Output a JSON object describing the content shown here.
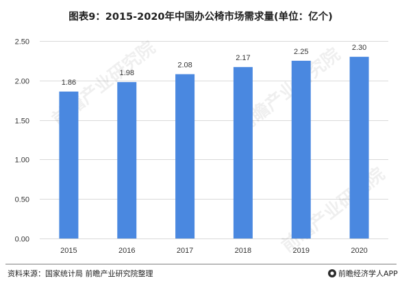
{
  "chart_data": {
    "type": "bar",
    "title": "图表9：2015-2020年中国办公椅市场需求量(单位：亿个)",
    "categories": [
      "2015",
      "2016",
      "2017",
      "2018",
      "2019",
      "2020"
    ],
    "values": [
      1.86,
      1.98,
      2.08,
      2.17,
      2.25,
      2.3
    ],
    "value_labels": [
      "1.86",
      "1.98",
      "2.08",
      "2.17",
      "2.25",
      "2.30"
    ],
    "y_ticks": [
      "0.00",
      "0.50",
      "1.00",
      "1.50",
      "2.00",
      "2.50"
    ],
    "y_tick_values": [
      0,
      0.5,
      1.0,
      1.5,
      2.0,
      2.5
    ],
    "ylim": [
      0,
      2.5
    ],
    "xlabel": "",
    "ylabel": "",
    "grid": true,
    "legend": "none",
    "bar_color": "#4a88e0",
    "grid_color": "#d9d9d9"
  },
  "footer": {
    "source": "资料来源：国家统计局 前瞻产业研究院整理",
    "brand": "前瞻经济学人APP"
  },
  "watermark": {
    "text": "前瞻产业研究院"
  }
}
